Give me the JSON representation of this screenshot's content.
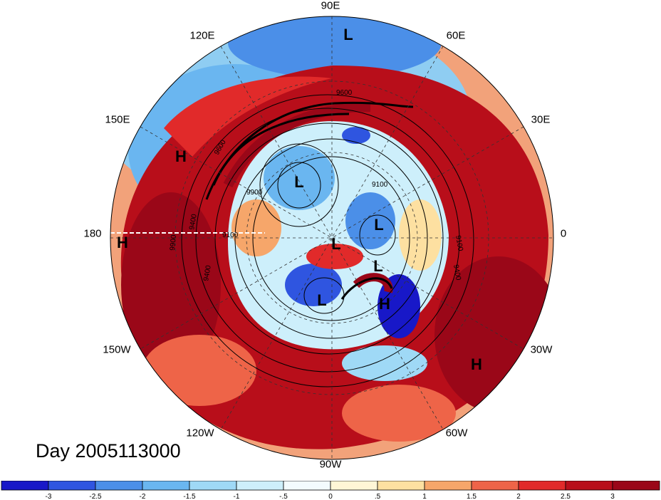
{
  "day_label": "Day 2005113000",
  "longitude_labels": {
    "lon_90e": "90E",
    "lon_120e": "120E",
    "lon_60e": "60E",
    "lon_150e": "150E",
    "lon_30e": "30E",
    "lon_180": "180",
    "lon_0": "0",
    "lon_150w": "150W",
    "lon_30w": "30W",
    "lon_120w": "120W",
    "lon_60w": "60W",
    "lon_90w": "90W"
  },
  "pressure_centers": [
    {
      "label": "L",
      "region": "north-pole-top"
    },
    {
      "label": "H",
      "region": "west-pacific"
    },
    {
      "label": "L",
      "region": "siberia"
    },
    {
      "label": "L",
      "region": "north-atlantic-upper"
    },
    {
      "label": "L",
      "region": "pole"
    },
    {
      "label": "L",
      "region": "greenland"
    },
    {
      "label": "H",
      "region": "dateline"
    },
    {
      "label": "L",
      "region": "hudson-bay"
    },
    {
      "label": "H",
      "region": "labrador"
    },
    {
      "label": "H",
      "region": "subtropical-atlantic"
    }
  ],
  "contour_labels": [
    "9600",
    "9600",
    "9900",
    "9100",
    "9100",
    "9400",
    "9100",
    "9400",
    "9400",
    "9900"
  ],
  "colorbar": {
    "tick_labels": [
      "-3",
      "-2.5",
      "-2",
      "-1.5",
      "-1",
      "-.5",
      "0",
      ".5",
      "1",
      "1.5",
      "2",
      "2.5",
      "3"
    ],
    "colors": [
      "#1818c8",
      "#2f55e0",
      "#4b8fe8",
      "#6ab6f0",
      "#9fd9f6",
      "#cdeffb",
      "#f3fbfe",
      "#fff6d6",
      "#fde0a1",
      "#f6a66a",
      "#ee6448",
      "#e12a2a",
      "#b80e1a",
      "#9a0718"
    ]
  },
  "colors": {
    "warm": "#b0101c",
    "cold": "#2f55e0",
    "contour": "#000000"
  }
}
